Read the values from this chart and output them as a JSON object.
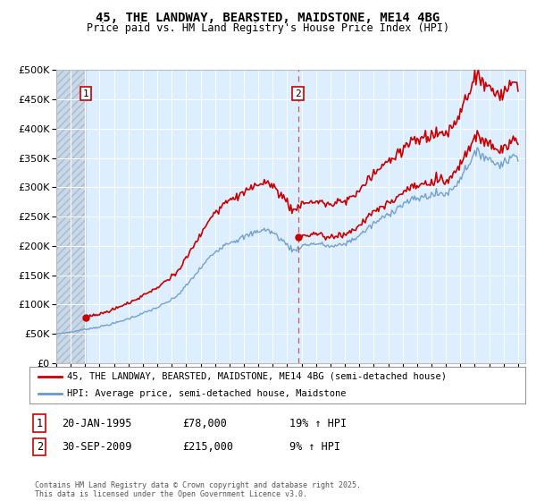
{
  "title_line1": "45, THE LANDWAY, BEARSTED, MAIDSTONE, ME14 4BG",
  "title_line2": "Price paid vs. HM Land Registry's House Price Index (HPI)",
  "background_color": "#ffffff",
  "plot_bg_color": "#ddeeff",
  "grid_color": "#ffffff",
  "red_line_color": "#cc0000",
  "blue_line_color": "#6699cc",
  "legend_label_red": "45, THE LANDWAY, BEARSTED, MAIDSTONE, ME14 4BG (semi-detached house)",
  "legend_label_blue": "HPI: Average price, semi-detached house, Maidstone",
  "footer_text": "Contains HM Land Registry data © Crown copyright and database right 2025.\nThis data is licensed under the Open Government Licence v3.0.",
  "price_sale1": 78000,
  "price_sale2": 215000,
  "sale1_x": 1995.055,
  "sale2_x": 2009.75,
  "ylim": [
    0,
    500000
  ],
  "xlim_start": 1993,
  "xlim_end": 2025.5
}
